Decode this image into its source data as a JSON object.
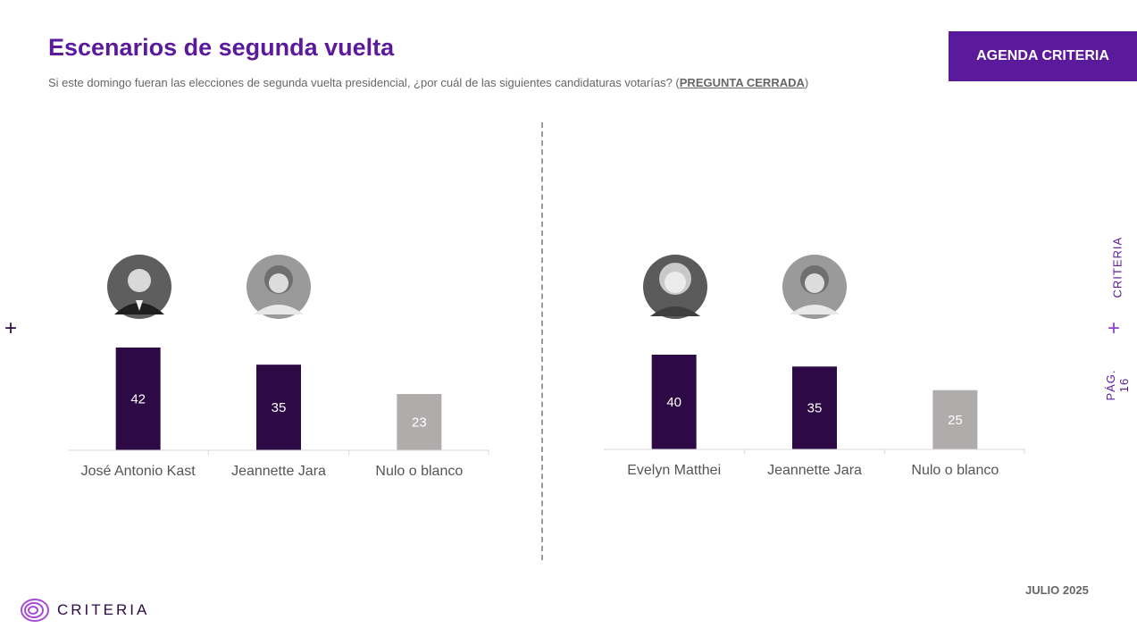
{
  "header": {
    "title": "Escenarios de segunda vuelta",
    "subtitle_main": "Si este domingo fueran las elecciones de segunda vuelta presidencial, ¿por cuál de las siguientes candidaturas votarías? (",
    "subtitle_closed": "PREGUNTA CERRADA",
    "subtitle_end": ")",
    "badge": "AGENDA CRITERIA"
  },
  "sidebar": {
    "brand": "CRITERIA",
    "page": "PÁG. 16",
    "plus": "+"
  },
  "footer": {
    "date": "JULIO 2025",
    "logo_text": "CRITERIA"
  },
  "colors": {
    "accent": "#5b1a9c",
    "bar_dark": "#2d0a45",
    "bar_gray": "#b0acac"
  },
  "chart_data": [
    {
      "type": "bar",
      "categories": [
        "José Antonio Kast",
        "Jeannette Jara",
        "Nulo o blanco"
      ],
      "values": [
        42,
        35,
        23
      ],
      "bar_colors": [
        "#2d0a45",
        "#2d0a45",
        "#b0acac"
      ],
      "ylim": [
        0,
        42
      ],
      "grid": false,
      "title": "",
      "xlabel": "",
      "ylabel": ""
    },
    {
      "type": "bar",
      "categories": [
        "Evelyn Matthei",
        "Jeannette Jara",
        "Nulo o blanco"
      ],
      "values": [
        40,
        35,
        25
      ],
      "bar_colors": [
        "#2d0a45",
        "#2d0a45",
        "#b0acac"
      ],
      "ylim": [
        0,
        42
      ],
      "grid": false,
      "title": "",
      "xlabel": "",
      "ylabel": ""
    }
  ]
}
